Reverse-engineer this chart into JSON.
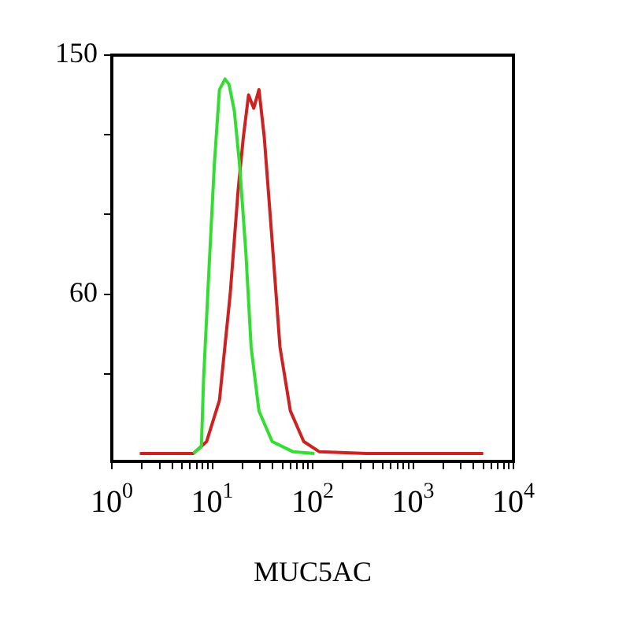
{
  "chart_data": {
    "type": "line",
    "xlabel": "MUC5AC",
    "log": "x",
    "xlim": [
      1,
      10000
    ],
    "ylim": [
      -3,
      150
    ],
    "xticks": [
      {
        "value": 1,
        "label": "10$^{0}$"
      },
      {
        "value": 2,
        "label": null
      },
      {
        "value": 3,
        "label": null
      },
      {
        "value": 4,
        "label": null
      },
      {
        "value": 5,
        "label": null
      },
      {
        "value": 6,
        "label": null
      },
      {
        "value": 7,
        "label": null
      },
      {
        "value": 8,
        "label": null
      },
      {
        "value": 9,
        "label": null
      },
      {
        "value": 10,
        "label": "10$^{1}$"
      },
      {
        "value": 20,
        "label": null
      },
      {
        "value": 30,
        "label": null
      },
      {
        "value": 40,
        "label": null
      },
      {
        "value": 50,
        "label": null
      },
      {
        "value": 60,
        "label": null
      },
      {
        "value": 70,
        "label": null
      },
      {
        "value": 80,
        "label": null
      },
      {
        "value": 90,
        "label": null
      },
      {
        "value": 100,
        "label": "10$^{2}$"
      },
      {
        "value": 200,
        "label": null
      },
      {
        "value": 300,
        "label": null
      },
      {
        "value": 400,
        "label": null
      },
      {
        "value": 500,
        "label": null
      },
      {
        "value": 600,
        "label": null
      },
      {
        "value": 700,
        "label": null
      },
      {
        "value": 800,
        "label": null
      },
      {
        "value": 900,
        "label": null
      },
      {
        "value": 1000,
        "label": "10$^{3}$"
      },
      {
        "value": 2000,
        "label": null
      },
      {
        "value": 3000,
        "label": null
      },
      {
        "value": 4000,
        "label": null
      },
      {
        "value": 5000,
        "label": null
      },
      {
        "value": 6000,
        "label": null
      },
      {
        "value": 7000,
        "label": null
      },
      {
        "value": 8000,
        "label": null
      },
      {
        "value": 9000,
        "label": null
      },
      {
        "value": 10000,
        "label": "10$^{4}$"
      }
    ],
    "yticks": [
      {
        "value": 30,
        "label": null
      },
      60,
      {
        "value": 90,
        "label": null
      },
      {
        "value": 120,
        "label": null
      },
      150
    ],
    "grid": false,
    "legend": false,
    "marker": "none",
    "line_style": "solid",
    "series": [
      {
        "color": "#33dd33",
        "x": [
          6.5,
          7.8,
          8.2,
          9.3,
          10.5,
          11.8,
          13.4,
          14.7,
          16.6,
          18.7,
          21.6,
          24.4,
          29.2,
          39.5,
          64,
          104
        ],
        "values": [
          0,
          2.6,
          28,
          70,
          109,
          137,
          141,
          139,
          129,
          109,
          76,
          40,
          16,
          4.5,
          0.6,
          0
        ]
      },
      {
        "color": "#cc2222",
        "x": [
          1.9,
          6.5,
          8.8,
          11.8,
          15.1,
          18.1,
          20.4,
          23,
          25.9,
          29.2,
          33,
          39.5,
          47.3,
          60,
          81.5,
          117,
          347,
          5000
        ],
        "values": [
          0,
          0,
          4.5,
          20,
          60,
          99,
          119,
          135,
          130,
          137,
          119,
          80,
          40,
          16,
          4.5,
          0.6,
          0,
          0
        ]
      }
    ]
  }
}
